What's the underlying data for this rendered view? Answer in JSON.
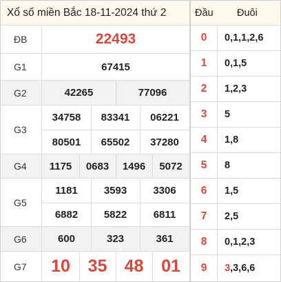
{
  "title": "Xổ số miền Bắc 18-11-2024 thứ 2",
  "prizes": {
    "db": {
      "label": "ĐB",
      "numbers": [
        "22493"
      ]
    },
    "g1": {
      "label": "G1",
      "numbers": [
        "67415"
      ]
    },
    "g2": {
      "label": "G2",
      "numbers": [
        "42265",
        "77096"
      ]
    },
    "g3": {
      "label": "G3",
      "numbers": [
        "34758",
        "83341",
        "06221",
        "80501",
        "65502",
        "37280"
      ]
    },
    "g4": {
      "label": "G4",
      "numbers": [
        "1175",
        "0683",
        "1496",
        "5072"
      ]
    },
    "g5": {
      "label": "G5",
      "numbers": [
        "1181",
        "3593",
        "3306",
        "6882",
        "5822",
        "6811"
      ]
    },
    "g6": {
      "label": "G6",
      "numbers": [
        "600",
        "323",
        "361"
      ]
    },
    "g7": {
      "label": "G7",
      "numbers": [
        "10",
        "35",
        "48",
        "01"
      ]
    }
  },
  "loto": {
    "head_label": "Đầu",
    "tail_label": "Đuôi",
    "rows": [
      {
        "head": "0",
        "tails": "0,1,1,2,6"
      },
      {
        "head": "1",
        "tails": "0,1,5"
      },
      {
        "head": "2",
        "tails": "1,2,3"
      },
      {
        "head": "3",
        "tails": "5"
      },
      {
        "head": "4",
        "tails": "1,8"
      },
      {
        "head": "5",
        "tails": "8"
      },
      {
        "head": "6",
        "tails": "1,5"
      },
      {
        "head": "7",
        "tails": "2,5"
      },
      {
        "head": "8",
        "tails": "0,1,2,3"
      },
      {
        "head": "9",
        "tails_first": "3",
        "tails_rest": ",3,6,6"
      }
    ]
  },
  "colors": {
    "accent_red": "#e0453a",
    "header_bg": "#fff8ec",
    "row_shade": "#f2f2f2"
  }
}
